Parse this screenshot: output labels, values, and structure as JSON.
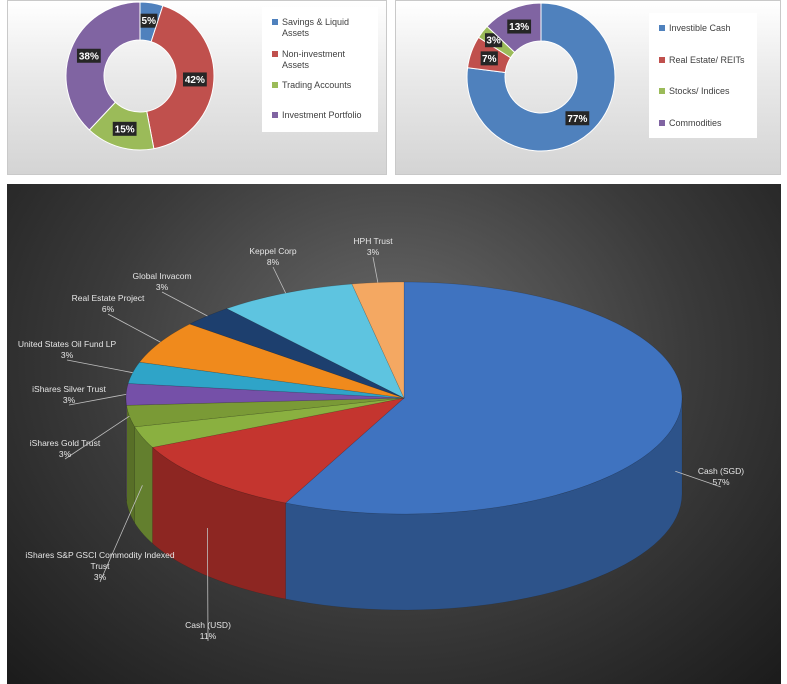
{
  "chart_data": [
    {
      "type": "pie",
      "variant": "doughnut",
      "categories": [
        "Savings & Liquid Assets",
        "Non-investment Assets",
        "Trading Accounts",
        "Investment Portfolio"
      ],
      "values": [
        5,
        42,
        15,
        38
      ],
      "labels": [
        "5%",
        "42%",
        "15%",
        "38%"
      ],
      "colors": [
        "#4f81bd",
        "#c0504d",
        "#9bbb59",
        "#8064a2"
      ],
      "legend_position": "right"
    },
    {
      "type": "pie",
      "variant": "doughnut",
      "categories": [
        "Investible Cash",
        "Real Estate/ REITs",
        "Stocks/ Indices",
        "Commodities"
      ],
      "values": [
        77,
        7,
        3,
        13
      ],
      "labels": [
        "77%",
        "7%",
        "3%",
        "13%"
      ],
      "colors": [
        "#4f81bd",
        "#c0504d",
        "#9bbb59",
        "#8064a2"
      ],
      "legend_position": "right"
    },
    {
      "type": "pie",
      "variant": "3d-pie",
      "categories": [
        "Cash (SGD)",
        "Cash (USD)",
        "iShares S&P GSCI Commodity Indexed Trust",
        "iShares Gold Trust",
        "iShares Silver Trust",
        "United States Oil Fund LP",
        "Real Estate Project",
        "Global Invacom",
        "Keppel Corp",
        "HPH Trust"
      ],
      "values": [
        57,
        11,
        3,
        3,
        3,
        3,
        6,
        3,
        8,
        3
      ],
      "labels": [
        "57%",
        "11%",
        "3%",
        "3%",
        "3%",
        "3%",
        "6%",
        "3%",
        "8%",
        "3%"
      ],
      "colors": [
        "#3f73c0",
        "#c4352f",
        "#8ab040",
        "#7a9a36",
        "#7550a8",
        "#2fa4c8",
        "#f08a1c",
        "#1d3f6e",
        "#5ec4e0",
        "#f4a862"
      ],
      "legend_position": "none"
    }
  ]
}
